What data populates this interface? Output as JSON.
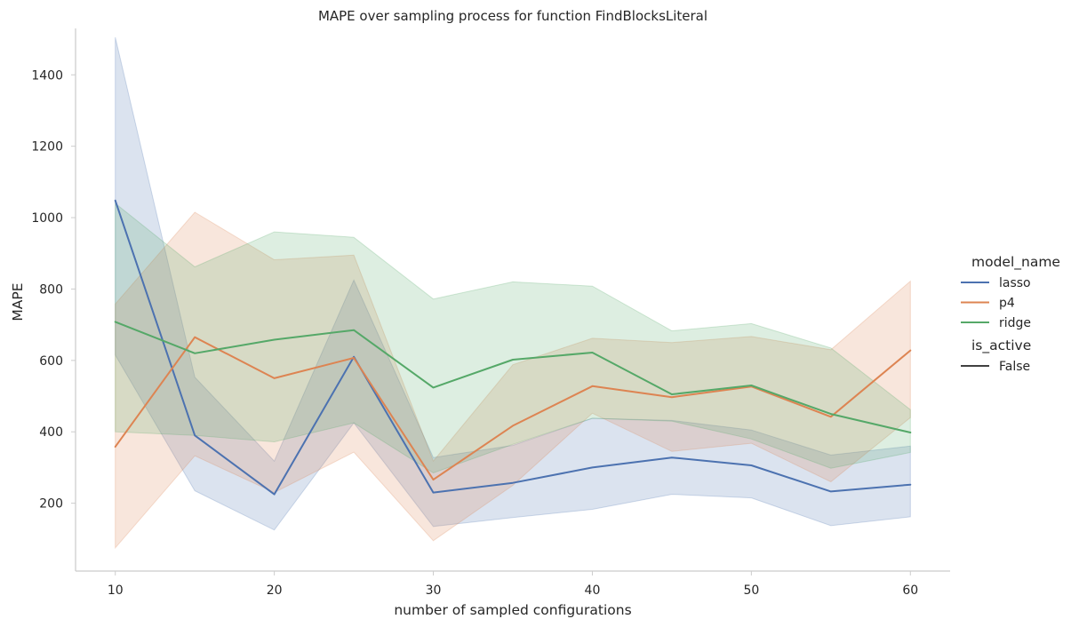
{
  "chart_data": {
    "type": "line",
    "title": "MAPE over sampling process for function FindBlocksLiteral",
    "xlabel": "number of sampled configurations",
    "ylabel": "MAPE",
    "x": [
      10,
      15,
      20,
      25,
      30,
      35,
      40,
      45,
      50,
      55,
      60
    ],
    "xlim": [
      7.5,
      62.5
    ],
    "ylim": [
      10,
      1530
    ],
    "xticks": [
      10,
      20,
      30,
      40,
      50,
      60
    ],
    "yticks": [
      200,
      400,
      600,
      800,
      1000,
      1200,
      1400
    ],
    "grid": false,
    "legend_position": "right",
    "legend": {
      "hue_title": "model_name",
      "style_title": "is_active",
      "style_entries": [
        "False"
      ]
    },
    "series": [
      {
        "name": "lasso",
        "color": "#4c72b0",
        "values": [
          1048,
          390,
          225,
          610,
          230,
          257,
          300,
          328,
          306,
          233,
          252
        ],
        "ci_low": [
          615,
          235,
          125,
          425,
          135,
          160,
          183,
          225,
          215,
          137,
          162
        ],
        "ci_high": [
          1505,
          553,
          318,
          825,
          328,
          362,
          438,
          432,
          405,
          335,
          360
        ]
      },
      {
        "name": "p4",
        "color": "#dd8452",
        "values": [
          358,
          665,
          550,
          607,
          266,
          417,
          528,
          497,
          527,
          442,
          628
        ],
        "ci_low": [
          75,
          333,
          230,
          343,
          95,
          250,
          452,
          345,
          368,
          260,
          440
        ],
        "ci_high": [
          758,
          1015,
          882,
          895,
          318,
          588,
          662,
          650,
          667,
          630,
          822
        ]
      },
      {
        "name": "ridge",
        "color": "#55a868",
        "values": [
          708,
          620,
          658,
          685,
          524,
          602,
          622,
          505,
          530,
          450,
          398
        ],
        "ci_low": [
          400,
          390,
          372,
          425,
          285,
          365,
          438,
          430,
          380,
          298,
          342
        ],
        "ci_high": [
          1040,
          862,
          960,
          945,
          772,
          820,
          808,
          683,
          703,
          635,
          462
        ]
      }
    ]
  }
}
